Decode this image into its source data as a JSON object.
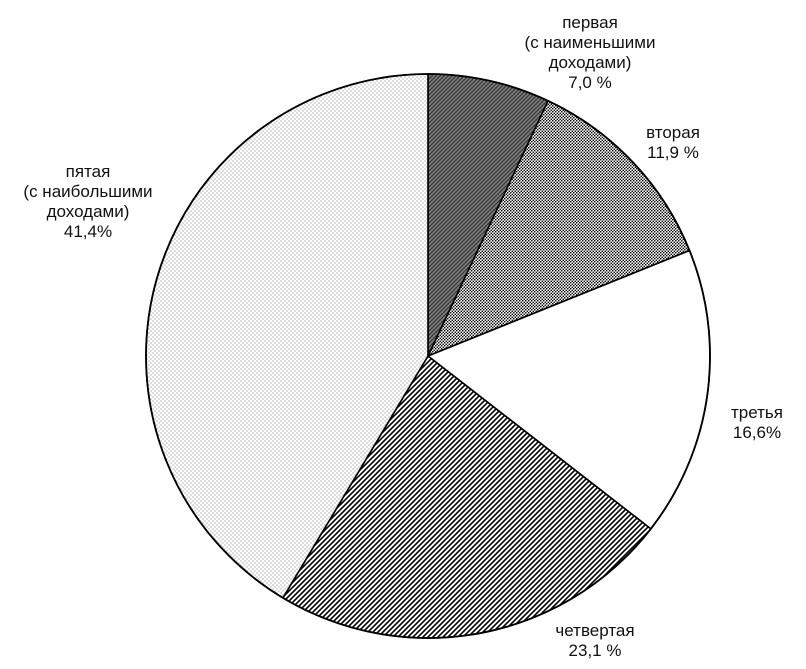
{
  "chart_data": {
    "type": "pie",
    "title": "",
    "start_angle_deg": 0,
    "direction": "clockwise",
    "slices": [
      {
        "name": "первая",
        "value": 7.0,
        "label_lines": [
          "первая",
          "(с наименьшими",
          "доходами)",
          "7,0 %"
        ],
        "fill": "crosshatch-dark"
      },
      {
        "name": "вторая",
        "value": 11.9,
        "label_lines": [
          "вторая",
          "11,9 %"
        ],
        "fill": "dense-dots"
      },
      {
        "name": "третья",
        "value": 16.6,
        "label_lines": [
          "третья",
          "16,6%"
        ],
        "fill": "white"
      },
      {
        "name": "четвертая",
        "value": 23.1,
        "label_lines": [
          "четвертая",
          "23,1 %"
        ],
        "fill": "diagonal-stripes"
      },
      {
        "name": "пятая",
        "value": 41.4,
        "label_lines": [
          "пятая",
          "(с наибольшими",
          "доходами)",
          "41,4%"
        ],
        "fill": "light-dots"
      }
    ],
    "colors": {
      "outline": "#000000",
      "background": "#ffffff",
      "pattern_ink": "#000000"
    }
  }
}
